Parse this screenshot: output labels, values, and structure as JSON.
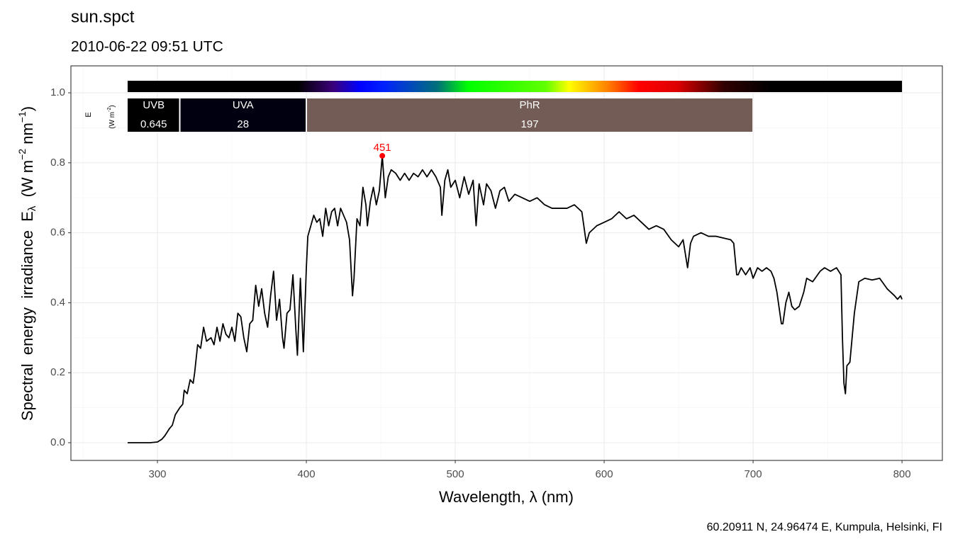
{
  "chart_data": {
    "type": "line",
    "title": "sun.spct",
    "subtitle": "2010-06-22 09:51 UTC",
    "xlabel": "Wavelength, λ (nm)",
    "ylabel_parts": [
      "Spectral  energy  irradiance  E",
      "λ",
      "  (W m",
      "−2",
      " nm",
      "−1",
      ")"
    ],
    "caption": "60.20911  N, 24.96474  E, Kumpula, Helsinki, FI",
    "band_axis_label": [
      "E",
      "(W m",
      "-2",
      ")"
    ],
    "xlim": [
      241.9,
      827.1
    ],
    "ylim": [
      -0.0506,
      1.077
    ],
    "xticks": [
      300,
      400,
      500,
      600,
      700,
      800
    ],
    "yticks": [
      {
        "value": 0,
        "label": "0.0"
      },
      {
        "value": 0.2,
        "label": "0.2"
      },
      {
        "value": 0.4,
        "label": "0.4"
      },
      {
        "value": 0.6,
        "label": "0.6"
      },
      {
        "value": 0.8,
        "label": "0.8"
      },
      {
        "value": 1,
        "label": "1.0"
      }
    ],
    "x_minor_grid": [
      250,
      350,
      450,
      550,
      650,
      750
    ],
    "y_minor_grid": [
      0.1,
      0.3,
      0.5,
      0.7,
      0.9
    ],
    "grid": true,
    "series": [
      {
        "name": "sun.spct",
        "color": "#000000",
        "x": [
          280,
          285,
          290,
          295,
          300,
          303,
          305,
          308,
          310,
          312,
          315,
          317,
          318,
          320,
          322,
          324,
          325,
          327,
          329,
          331,
          333,
          336,
          338,
          340,
          342,
          344,
          346,
          348,
          350,
          352,
          354,
          356,
          358,
          360,
          362,
          364,
          366,
          368,
          370,
          372,
          374,
          376,
          378,
          380,
          382,
          384,
          385,
          387,
          389,
          391,
          393,
          394,
          396,
          398,
          400,
          401,
          403,
          405,
          407,
          409,
          411,
          413,
          415,
          417,
          419,
          421,
          423,
          425,
          427,
          429,
          431,
          432,
          434,
          436,
          438,
          440,
          441,
          443,
          445,
          447,
          449,
          451,
          453,
          455,
          457,
          460,
          463,
          466,
          469,
          472,
          475,
          478,
          481,
          484,
          487,
          490,
          491,
          493,
          495,
          497,
          500,
          503,
          506,
          509,
          512,
          514,
          516,
          519,
          521,
          524,
          527,
          530,
          533,
          536,
          540,
          545,
          550,
          555,
          560,
          565,
          570,
          575,
          580,
          585,
          588,
          590,
          595,
          600,
          605,
          610,
          615,
          620,
          625,
          630,
          635,
          640,
          645,
          650,
          653,
          656,
          658,
          660,
          665,
          670,
          675,
          680,
          685,
          687,
          689,
          690,
          692,
          695,
          698,
          700,
          703,
          706,
          709,
          712,
          714,
          716,
          719,
          720,
          722,
          724,
          726,
          728,
          731,
          734,
          736,
          740,
          745,
          748,
          752,
          756,
          759,
          760,
          761,
          762,
          763,
          765,
          768,
          771,
          775,
          780,
          785,
          790,
          795,
          797,
          799,
          800
        ],
        "values": [
          0,
          0,
          0,
          0,
          0.002,
          0.01,
          0.02,
          0.04,
          0.05,
          0.08,
          0.1,
          0.11,
          0.15,
          0.14,
          0.18,
          0.17,
          0.2,
          0.28,
          0.27,
          0.33,
          0.29,
          0.3,
          0.28,
          0.33,
          0.29,
          0.34,
          0.31,
          0.3,
          0.33,
          0.29,
          0.37,
          0.36,
          0.3,
          0.26,
          0.34,
          0.35,
          0.45,
          0.39,
          0.44,
          0.37,
          0.33,
          0.42,
          0.49,
          0.35,
          0.41,
          0.3,
          0.27,
          0.37,
          0.38,
          0.48,
          0.32,
          0.25,
          0.47,
          0.26,
          0.5,
          0.59,
          0.62,
          0.65,
          0.63,
          0.64,
          0.59,
          0.67,
          0.62,
          0.66,
          0.67,
          0.62,
          0.67,
          0.65,
          0.63,
          0.58,
          0.42,
          0.47,
          0.64,
          0.62,
          0.73,
          0.68,
          0.62,
          0.69,
          0.73,
          0.68,
          0.72,
          0.82,
          0.7,
          0.76,
          0.78,
          0.77,
          0.75,
          0.77,
          0.75,
          0.77,
          0.76,
          0.78,
          0.76,
          0.78,
          0.76,
          0.73,
          0.65,
          0.75,
          0.78,
          0.73,
          0.75,
          0.7,
          0.76,
          0.71,
          0.75,
          0.62,
          0.74,
          0.68,
          0.74,
          0.72,
          0.67,
          0.72,
          0.73,
          0.69,
          0.71,
          0.7,
          0.69,
          0.7,
          0.68,
          0.67,
          0.67,
          0.67,
          0.68,
          0.66,
          0.57,
          0.6,
          0.62,
          0.63,
          0.64,
          0.66,
          0.64,
          0.65,
          0.63,
          0.61,
          0.62,
          0.61,
          0.58,
          0.56,
          0.58,
          0.5,
          0.57,
          0.59,
          0.6,
          0.59,
          0.59,
          0.585,
          0.58,
          0.57,
          0.48,
          0.48,
          0.5,
          0.48,
          0.5,
          0.47,
          0.5,
          0.49,
          0.5,
          0.49,
          0.47,
          0.43,
          0.34,
          0.34,
          0.4,
          0.43,
          0.39,
          0.38,
          0.39,
          0.43,
          0.47,
          0.46,
          0.49,
          0.5,
          0.49,
          0.5,
          0.48,
          0.3,
          0.17,
          0.14,
          0.22,
          0.23,
          0.37,
          0.46,
          0.47,
          0.465,
          0.47,
          0.44,
          0.42,
          0.41,
          0.42,
          0.41
        ]
      }
    ],
    "peak": {
      "x": 451,
      "y": 0.82,
      "color": "#ff0000"
    },
    "bands": [
      {
        "name": "UVB",
        "range": [
          280,
          315
        ],
        "value": 0.645,
        "color": "#000000"
      },
      {
        "name": "UVA",
        "range": [
          315,
          400
        ],
        "value": 28,
        "color": "#000010"
      },
      {
        "name": "PhR",
        "range": [
          400,
          700
        ],
        "value": 197,
        "color": "#735c55"
      }
    ]
  }
}
